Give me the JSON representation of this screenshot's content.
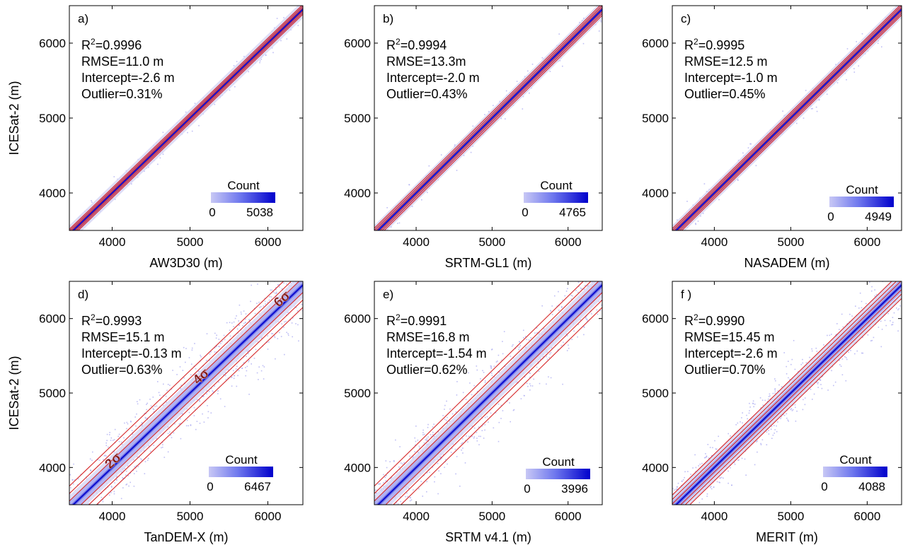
{
  "chart_data": [
    {
      "type": "scatter",
      "panel": "a)",
      "xlabel": "AW3D30 (m)",
      "ylabel": "ICESat-2 (m)",
      "xlim": [
        3450,
        6450
      ],
      "ylim": [
        3500,
        6500
      ],
      "xticks": [
        4000,
        5000,
        6000
      ],
      "yticks": [
        4000,
        5000,
        6000
      ],
      "stats": [
        "R²=0.9996",
        "RMSE=11.0 m",
        "Intercept=-2.6 m",
        "Outlier=0.31%"
      ],
      "colorbar": {
        "title": "Count",
        "min": "0",
        "max": "5038"
      },
      "sigma_offsets_m": [
        22,
        44,
        66
      ],
      "sigma_labels": [],
      "point_cloud": {
        "spread_m": 60,
        "extent": "narrow"
      }
    },
    {
      "type": "scatter",
      "panel": "b)",
      "xlabel": "SRTM-GL1 (m)",
      "ylabel": "",
      "xlim": [
        3450,
        6450
      ],
      "ylim": [
        3500,
        6500
      ],
      "xticks": [
        4000,
        5000,
        6000
      ],
      "yticks": [
        4000,
        5000,
        6000
      ],
      "stats": [
        "R²=0.9994",
        "RMSE=13.3m",
        "Intercept=-2.0 m",
        "Outlier=0.43%"
      ],
      "colorbar": {
        "title": "Count",
        "min": "0",
        "max": "4765"
      },
      "sigma_offsets_m": [
        27,
        53,
        80
      ],
      "sigma_labels": [],
      "point_cloud": {
        "spread_m": 70,
        "extent": "narrow"
      }
    },
    {
      "type": "scatter",
      "panel": "c)",
      "xlabel": "NASADEM (m)",
      "ylabel": "",
      "xlim": [
        3450,
        6450
      ],
      "ylim": [
        3500,
        6500
      ],
      "xticks": [
        4000,
        5000,
        6000
      ],
      "yticks": [
        4000,
        5000,
        6000
      ],
      "stats": [
        "R²=0.9995",
        "RMSE=12.5 m",
        "Intercept=-1.0 m",
        "Outlier=0.45%"
      ],
      "colorbar": {
        "title": "Count",
        "min": "0",
        "max": "4949"
      },
      "sigma_offsets_m": [
        25,
        50,
        75
      ],
      "sigma_labels": [],
      "point_cloud": {
        "spread_m": 65,
        "extent": "narrow"
      }
    },
    {
      "type": "scatter",
      "panel": "d)",
      "xlabel": "TanDEM-X (m)",
      "ylabel": "ICESat-2 (m)",
      "xlim": [
        3450,
        6450
      ],
      "ylim": [
        3500,
        6500
      ],
      "xticks": [
        4000,
        5000,
        6000
      ],
      "yticks": [
        4000,
        5000,
        6000
      ],
      "stats": [
        "R²=0.9993",
        "RMSE=15.1 m",
        "Intercept=-0.13 m",
        "Outlier=0.63%"
      ],
      "colorbar": {
        "title": "Count",
        "min": "0",
        "max": "6467"
      },
      "sigma_offsets_m": [
        100,
        200,
        300
      ],
      "sigma_labels": [
        "2σ",
        "4σ",
        "6σ"
      ],
      "point_cloud": {
        "spread_m": 260,
        "extent": "wide"
      }
    },
    {
      "type": "scatter",
      "panel": "e)",
      "xlabel": "SRTM v4.1 (m)",
      "ylabel": "",
      "xlim": [
        3450,
        6450
      ],
      "ylim": [
        3500,
        6500
      ],
      "xticks": [
        4000,
        5000,
        6000
      ],
      "yticks": [
        4000,
        5000,
        6000
      ],
      "stats": [
        "R²=0.9991",
        "RMSE=16.8 m",
        "Intercept=-1.54 m",
        "Outlier=0.62%"
      ],
      "colorbar": {
        "title": "Count",
        "min": "0",
        "max": "3996"
      },
      "sigma_offsets_m": [
        100,
        200,
        300
      ],
      "sigma_labels": [],
      "point_cloud": {
        "spread_m": 240,
        "extent": "wide"
      }
    },
    {
      "type": "scatter",
      "panel": "f )",
      "xlabel": "MERIT (m)",
      "ylabel": "",
      "xlim": [
        3450,
        6450
      ],
      "ylim": [
        3500,
        6500
      ],
      "xticks": [
        4000,
        5000,
        6000
      ],
      "yticks": [
        4000,
        5000,
        6000
      ],
      "stats": [
        "R²=0.9990",
        "RMSE=15.45 m",
        "Intercept=-2.6 m",
        "Outlier=0.70%"
      ],
      "colorbar": {
        "title": "Count",
        "min": "0",
        "max": "4088"
      },
      "sigma_offsets_m": [
        60,
        120,
        180
      ],
      "sigma_labels": [],
      "point_cloud": {
        "spread_m": 180,
        "extent": "wide"
      }
    }
  ],
  "colors": {
    "line": "#d62728",
    "dense": "#0000cc",
    "light": "#c8c8f5",
    "axis": "#000000"
  }
}
